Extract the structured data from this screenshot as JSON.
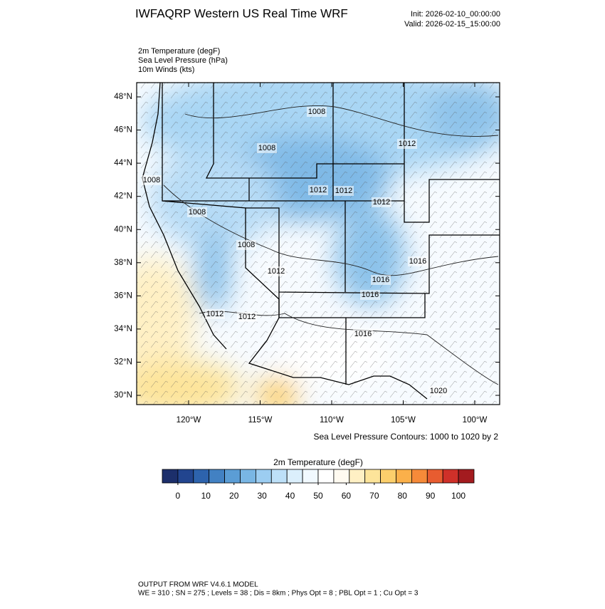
{
  "header": {
    "title": "IWFAQRP Western US Real Time WRF",
    "init": "Init: 2026-02-10_00:00:00",
    "valid": "Valid: 2026-02-15_15:00:00"
  },
  "fields": [
    "2m Temperature   (degF)",
    "Sea Level Pressure   (hPa)",
    "10m Winds   (kts)"
  ],
  "map": {
    "lat_ticks": [
      {
        "value": 48,
        "label": "48°N"
      },
      {
        "value": 46,
        "label": "46°N"
      },
      {
        "value": 44,
        "label": "44°N"
      },
      {
        "value": 42,
        "label": "42°N"
      },
      {
        "value": 40,
        "label": "40°N"
      },
      {
        "value": 38,
        "label": "38°N"
      },
      {
        "value": 36,
        "label": "36°N"
      },
      {
        "value": 34,
        "label": "34°N"
      },
      {
        "value": 32,
        "label": "32°N"
      },
      {
        "value": 30,
        "label": "30°N"
      }
    ],
    "lon_ticks": [
      {
        "value": -120,
        "label": "120°W"
      },
      {
        "value": -115,
        "label": "115°W"
      },
      {
        "value": -110,
        "label": "110°W"
      },
      {
        "value": -105,
        "label": "105°W"
      },
      {
        "value": -100,
        "label": "100°W"
      }
    ],
    "contour_labels": [
      "1008",
      "1008",
      "1012",
      "1008",
      "1012",
      "1012",
      "1012",
      "1008",
      "1008",
      "1016",
      "1012",
      "1016",
      "1016",
      "1012",
      "1012",
      "1016",
      "1020"
    ],
    "contour_note": "Sea Level Pressure Contours: 1000 to 1020 by 2"
  },
  "colorbar": {
    "title": "2m Temperature  (degF)",
    "colors": [
      "#1c2f6b",
      "#22458f",
      "#2d63ad",
      "#4281c3",
      "#5b9dd5",
      "#79b6e4",
      "#9ccdf1",
      "#bde0f8",
      "#dbeffc",
      "#f1f9ff",
      "#ffffff",
      "#fffaf0",
      "#fff0c4",
      "#fde49a",
      "#fccf6c",
      "#fbb04a",
      "#f68a39",
      "#e85c30",
      "#cf3029",
      "#a31b1f"
    ],
    "ticks": [
      0,
      10,
      20,
      30,
      40,
      50,
      60,
      70,
      80,
      90,
      100
    ]
  },
  "footer": [
    "OUTPUT FROM WRF V4.6.1 MODEL",
    "WE = 310 ; SN = 275 ; Levels = 38 ; Dis = 8km ; Phys Opt = 8 ; PBL Opt = 1 ; Cu Opt = 3"
  ]
}
